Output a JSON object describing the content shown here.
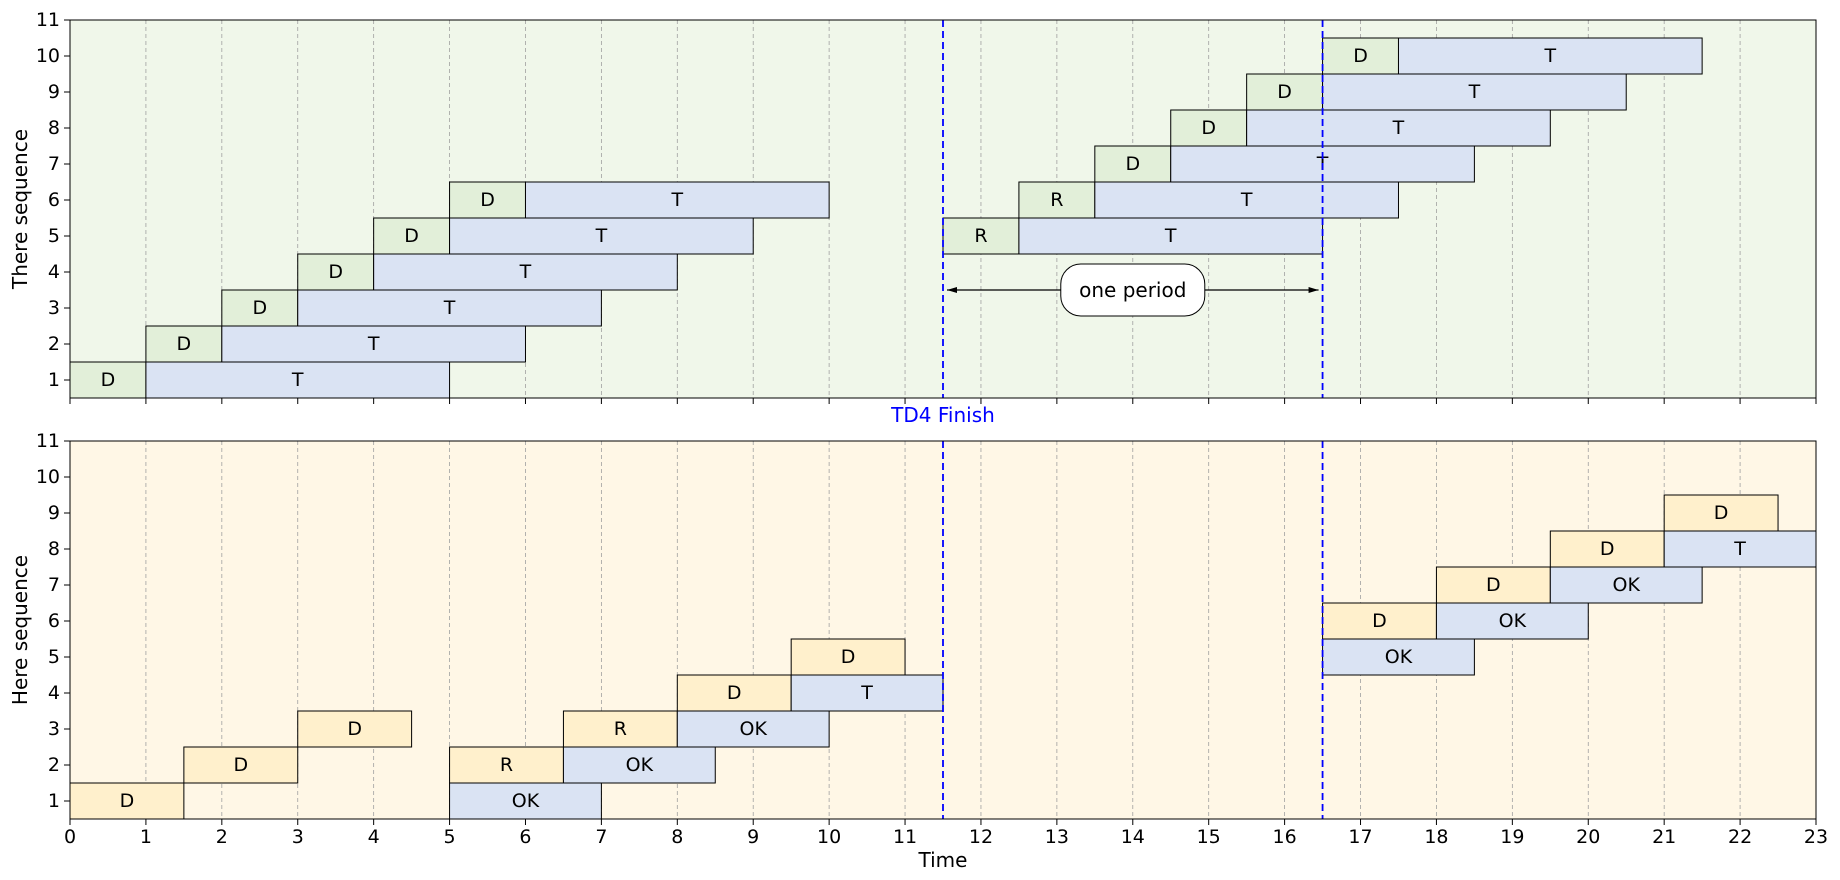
{
  "chart_data": {
    "type": "bar",
    "subtype": "horizontal-timeline",
    "xlabel": "Time",
    "xlim": [
      0,
      23
    ],
    "x_ticks": [
      0,
      1,
      2,
      3,
      4,
      5,
      6,
      7,
      8,
      9,
      10,
      11,
      12,
      13,
      14,
      15,
      16,
      17,
      18,
      19,
      20,
      21,
      22,
      23
    ],
    "ylim": [
      0.5,
      11
    ],
    "y_ticks": [
      1,
      2,
      3,
      4,
      5,
      6,
      7,
      8,
      9,
      10,
      11
    ],
    "grid": "vertical dashed",
    "vertical_markers": [
      {
        "x": 11.5,
        "label": "TD4 Finish",
        "color": "#0000ff"
      },
      {
        "x": 16.5,
        "label": "",
        "color": "#0000ff"
      }
    ],
    "annotation": {
      "label": "one period",
      "x_start": 11.5,
      "x_end": 16.5,
      "y": 3.5,
      "panel": "top"
    },
    "panels": [
      {
        "name": "top",
        "ylabel": "There sequence",
        "background": "#f0f7ea",
        "bars": [
          {
            "y": 1,
            "start": 0,
            "end": 1,
            "label": "D",
            "kind": "D"
          },
          {
            "y": 1,
            "start": 1,
            "end": 5,
            "label": "T",
            "kind": "T"
          },
          {
            "y": 2,
            "start": 1,
            "end": 2,
            "label": "D",
            "kind": "D"
          },
          {
            "y": 2,
            "start": 2,
            "end": 6,
            "label": "T",
            "kind": "T"
          },
          {
            "y": 3,
            "start": 2,
            "end": 3,
            "label": "D",
            "kind": "D"
          },
          {
            "y": 3,
            "start": 3,
            "end": 7,
            "label": "T",
            "kind": "T"
          },
          {
            "y": 4,
            "start": 3,
            "end": 4,
            "label": "D",
            "kind": "D"
          },
          {
            "y": 4,
            "start": 4,
            "end": 8,
            "label": "T",
            "kind": "T"
          },
          {
            "y": 5,
            "start": 4,
            "end": 5,
            "label": "D",
            "kind": "D"
          },
          {
            "y": 5,
            "start": 5,
            "end": 9,
            "label": "T",
            "kind": "T"
          },
          {
            "y": 6,
            "start": 5,
            "end": 6,
            "label": "D",
            "kind": "D"
          },
          {
            "y": 6,
            "start": 6,
            "end": 10,
            "label": "T",
            "kind": "T"
          },
          {
            "y": 5,
            "start": 11.5,
            "end": 12.5,
            "label": "R",
            "kind": "D"
          },
          {
            "y": 5,
            "start": 12.5,
            "end": 16.5,
            "label": "T",
            "kind": "T"
          },
          {
            "y": 6,
            "start": 12.5,
            "end": 13.5,
            "label": "R",
            "kind": "D"
          },
          {
            "y": 6,
            "start": 13.5,
            "end": 17.5,
            "label": "T",
            "kind": "T"
          },
          {
            "y": 7,
            "start": 13.5,
            "end": 14.5,
            "label": "D",
            "kind": "D"
          },
          {
            "y": 7,
            "start": 14.5,
            "end": 18.5,
            "label": "T",
            "kind": "T"
          },
          {
            "y": 8,
            "start": 14.5,
            "end": 15.5,
            "label": "D",
            "kind": "D"
          },
          {
            "y": 8,
            "start": 15.5,
            "end": 19.5,
            "label": "T",
            "kind": "T"
          },
          {
            "y": 9,
            "start": 15.5,
            "end": 16.5,
            "label": "D",
            "kind": "D"
          },
          {
            "y": 9,
            "start": 16.5,
            "end": 20.5,
            "label": "T",
            "kind": "T"
          },
          {
            "y": 10,
            "start": 16.5,
            "end": 17.5,
            "label": "D",
            "kind": "D"
          },
          {
            "y": 10,
            "start": 17.5,
            "end": 21.5,
            "label": "T",
            "kind": "T"
          }
        ]
      },
      {
        "name": "bottom",
        "ylabel": "Here sequence",
        "background": "#fff7e6",
        "bars": [
          {
            "y": 1,
            "start": 0,
            "end": 1.5,
            "label": "D",
            "kind": "D"
          },
          {
            "y": 2,
            "start": 1.5,
            "end": 3,
            "label": "D",
            "kind": "D"
          },
          {
            "y": 3,
            "start": 3,
            "end": 4.5,
            "label": "D",
            "kind": "D"
          },
          {
            "y": 1,
            "start": 5,
            "end": 7,
            "label": "OK",
            "kind": "T"
          },
          {
            "y": 2,
            "start": 5,
            "end": 6.5,
            "label": "R",
            "kind": "D"
          },
          {
            "y": 2,
            "start": 6.5,
            "end": 8.5,
            "label": "OK",
            "kind": "T"
          },
          {
            "y": 3,
            "start": 6.5,
            "end": 8,
            "label": "R",
            "kind": "D"
          },
          {
            "y": 3,
            "start": 8,
            "end": 10,
            "label": "OK",
            "kind": "T"
          },
          {
            "y": 4,
            "start": 8,
            "end": 9.5,
            "label": "D",
            "kind": "D"
          },
          {
            "y": 4,
            "start": 9.5,
            "end": 11.5,
            "label": "T",
            "kind": "T"
          },
          {
            "y": 5,
            "start": 9.5,
            "end": 11,
            "label": "D",
            "kind": "D"
          },
          {
            "y": 5,
            "start": 16.5,
            "end": 18.5,
            "label": "OK",
            "kind": "T"
          },
          {
            "y": 6,
            "start": 16.5,
            "end": 18,
            "label": "D",
            "kind": "D"
          },
          {
            "y": 6,
            "start": 18,
            "end": 20,
            "label": "OK",
            "kind": "T"
          },
          {
            "y": 7,
            "start": 18,
            "end": 19.5,
            "label": "D",
            "kind": "D"
          },
          {
            "y": 7,
            "start": 19.5,
            "end": 21.5,
            "label": "OK",
            "kind": "T"
          },
          {
            "y": 8,
            "start": 19.5,
            "end": 21,
            "label": "D",
            "kind": "D"
          },
          {
            "y": 8,
            "start": 21,
            "end": 23,
            "label": "T",
            "kind": "T"
          },
          {
            "y": 9,
            "start": 21,
            "end": 22.5,
            "label": "D",
            "kind": "D"
          }
        ]
      }
    ],
    "colors": {
      "top_D": "#e2efd9",
      "bottom_D": "#fff0cc",
      "T": "#dae3f3",
      "edge": "#000000",
      "grid": "#a0a0a0",
      "marker": "#0000ff"
    }
  }
}
